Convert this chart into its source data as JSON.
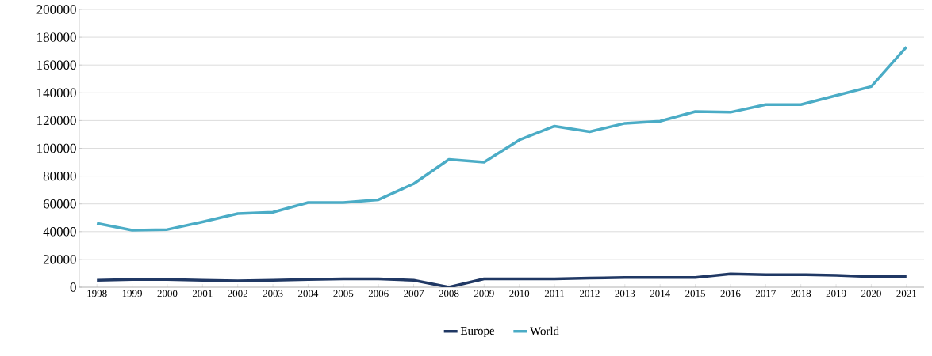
{
  "chart_data": {
    "type": "line",
    "categories": [
      "1998",
      "1999",
      "2000",
      "2001",
      "2002",
      "2003",
      "2004",
      "2005",
      "2006",
      "2007",
      "2008",
      "2009",
      "2010",
      "2011",
      "2012",
      "2013",
      "2014",
      "2015",
      "2016",
      "2017",
      "2018",
      "2019",
      "2020",
      "2021"
    ],
    "series": [
      {
        "name": "Europe",
        "color": "#203864",
        "values": [
          5000,
          5500,
          5500,
          5000,
          4500,
          5000,
          5500,
          6000,
          6000,
          5000,
          0,
          6000,
          6000,
          6000,
          6500,
          7000,
          7000,
          7000,
          9500,
          9000,
          9000,
          8500,
          7500,
          7500
        ]
      },
      {
        "name": "World",
        "color": "#4bacc6",
        "values": [
          46000,
          41000,
          41500,
          47000,
          53000,
          54000,
          61000,
          61000,
          63000,
          74500,
          92000,
          90000,
          106000,
          116000,
          112000,
          118000,
          119500,
          126500,
          126000,
          131500,
          131500,
          138000,
          144500,
          173000
        ]
      }
    ],
    "ylim": [
      0,
      200000
    ],
    "yticks": [
      0,
      20000,
      40000,
      60000,
      80000,
      100000,
      120000,
      140000,
      160000,
      180000,
      200000
    ],
    "grid": "y",
    "legend": "bottom",
    "marker": "none",
    "line_style": "solid"
  }
}
